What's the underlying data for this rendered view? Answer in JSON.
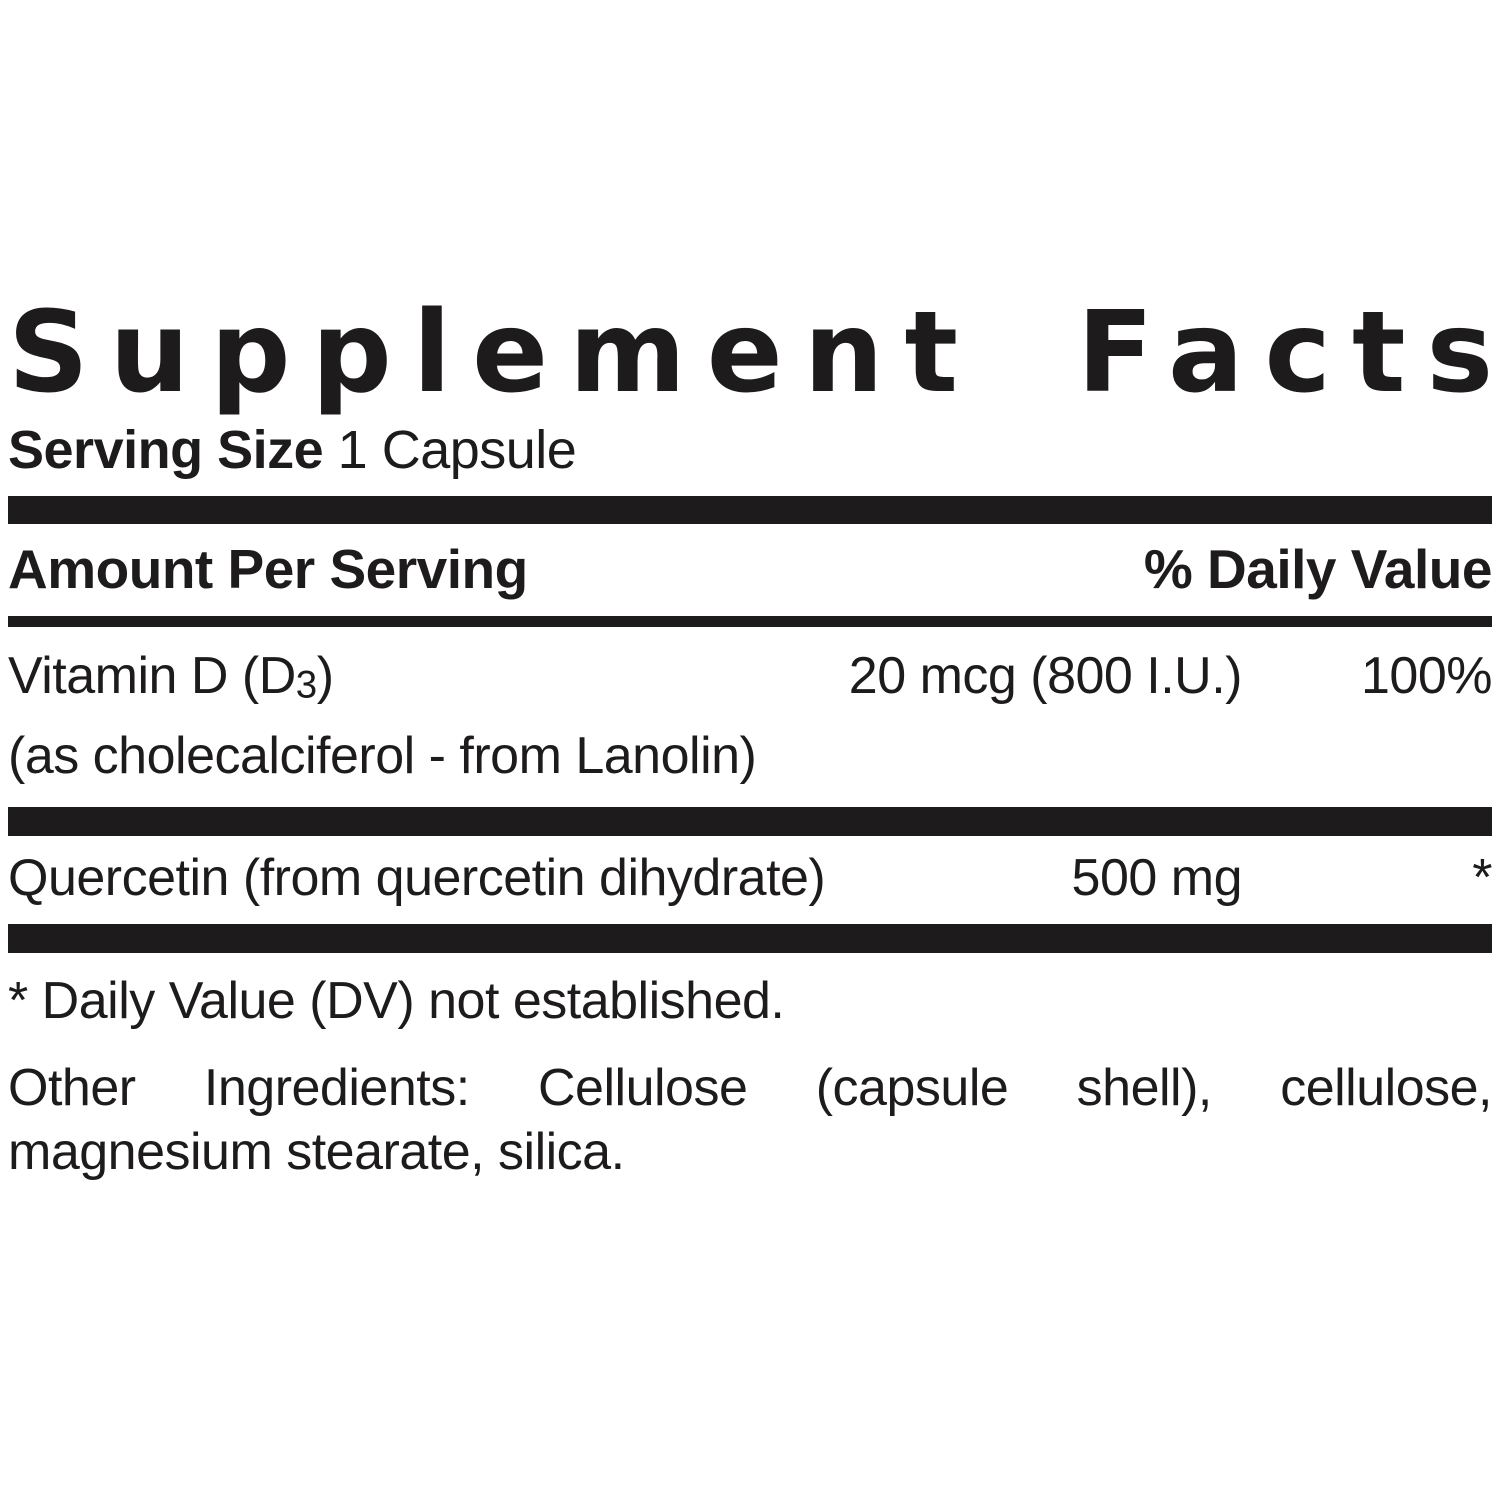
{
  "title": "Supplement Facts",
  "serving": {
    "label": "Serving Size",
    "value": "1 Capsule"
  },
  "header": {
    "amount_label": "Amount Per Serving",
    "dv_label": "% Daily Value"
  },
  "rows": [
    {
      "name_prefix": "Vitamin D (D",
      "name_sub": "3",
      "name_suffix": ")",
      "detail": "(as cholecalciferol - from Lanolin)",
      "amount": "20 mcg (800 I.U.)",
      "dv": "100%"
    },
    {
      "name": "Quercetin (from quercetin dihydrate)",
      "amount": "500 mg",
      "dv": "*"
    }
  ],
  "footnote": "* Daily Value (DV) not established.",
  "other_ingredients": {
    "line1": "Other Ingredients: Cellulose (capsule shell), cellulose,",
    "line2": "magnesium stearate, silica."
  },
  "colors": {
    "text": "#1e1b1c",
    "bar": "#1e1b1c",
    "background": "#ffffff"
  }
}
